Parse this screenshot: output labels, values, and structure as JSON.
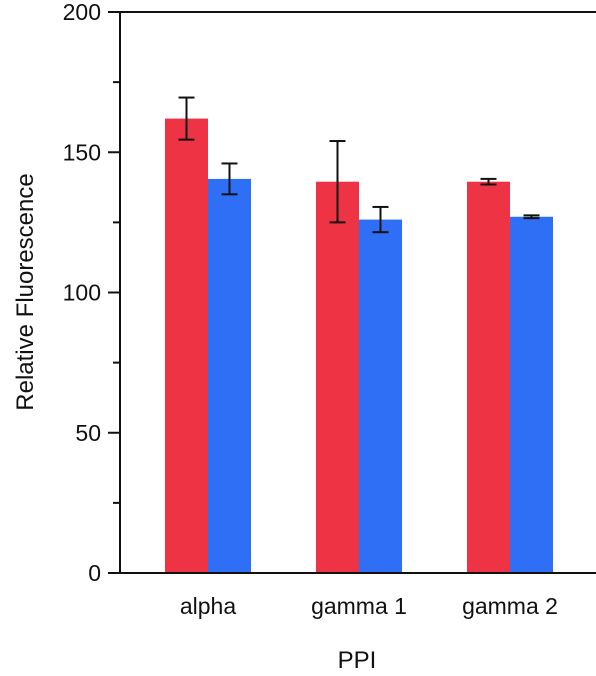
{
  "chart_data": {
    "type": "bar",
    "title": "",
    "xlabel": "PPI",
    "ylabel": "Relative Fluorescence",
    "categories": [
      "alpha",
      "gamma 1",
      "gamma 2"
    ],
    "series": [
      {
        "color": "#ee3344",
        "values": [
          162,
          139.5,
          139.5
        ],
        "errors": [
          7.5,
          14.5,
          1
        ]
      },
      {
        "color": "#2e6ff5",
        "values": [
          140.5,
          126,
          127
        ],
        "errors": [
          5.5,
          4.5,
          0.5
        ]
      }
    ],
    "ylim": [
      0,
      200
    ],
    "yticks": [
      0,
      50,
      100,
      150,
      200
    ],
    "grid": false,
    "legend": "none"
  }
}
